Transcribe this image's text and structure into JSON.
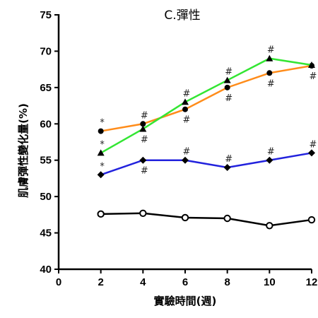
{
  "chart_data": {
    "type": "line",
    "title": "C.彈性",
    "xlabel": "實驗時間(週)",
    "ylabel": "肌膚彈性變化量(%)",
    "xlim": [
      0,
      12
    ],
    "ylim": [
      40,
      75
    ],
    "x_ticks": [
      0,
      2,
      4,
      6,
      8,
      10,
      12
    ],
    "y_ticks": [
      40,
      45,
      50,
      55,
      60,
      65,
      70,
      75
    ],
    "grid": false,
    "legend": "none",
    "x": [
      2,
      4,
      6,
      8,
      10,
      12
    ],
    "series": [
      {
        "color": "#ff8c1a",
        "marker": "circle",
        "values": [
          59,
          60,
          62,
          65,
          67,
          68
        ],
        "annotations": [
          {
            "x": 2,
            "text": "*",
            "pos": "above"
          },
          {
            "x": 4,
            "text": "#",
            "pos": "above"
          },
          {
            "x": 6,
            "text": "#",
            "pos": "below"
          },
          {
            "x": 8,
            "text": "#",
            "pos": "below"
          },
          {
            "x": 10,
            "text": "#",
            "pos": "below"
          },
          {
            "x": 12,
            "text": "#",
            "pos": "below"
          }
        ]
      },
      {
        "color": "#33e633",
        "marker": "triangle",
        "values": [
          56,
          59.3,
          63,
          66,
          69,
          68.1
        ],
        "annotations": [
          {
            "x": 2,
            "text": "*",
            "pos": "above"
          },
          {
            "x": 4,
            "text": "#",
            "pos": "below"
          },
          {
            "x": 6,
            "text": "#",
            "pos": "above"
          },
          {
            "x": 8,
            "text": "#",
            "pos": "above"
          },
          {
            "x": 10,
            "text": "#",
            "pos": "above"
          }
        ]
      },
      {
        "color": "#2222dd",
        "marker": "diamond",
        "values": [
          53,
          55,
          55,
          54,
          55,
          56
        ],
        "annotations": [
          {
            "x": 2,
            "text": "*",
            "pos": "above"
          },
          {
            "x": 4,
            "text": "#",
            "pos": "below"
          },
          {
            "x": 6,
            "text": "#",
            "pos": "above"
          },
          {
            "x": 8,
            "text": "#",
            "pos": "above"
          },
          {
            "x": 10,
            "text": "#",
            "pos": "above"
          },
          {
            "x": 12,
            "text": "#",
            "pos": "above"
          }
        ]
      },
      {
        "color": "#000000",
        "marker": "open-circle",
        "values": [
          47.6,
          47.7,
          47.1,
          47.0,
          46.0,
          46.8
        ],
        "annotations": []
      }
    ]
  }
}
